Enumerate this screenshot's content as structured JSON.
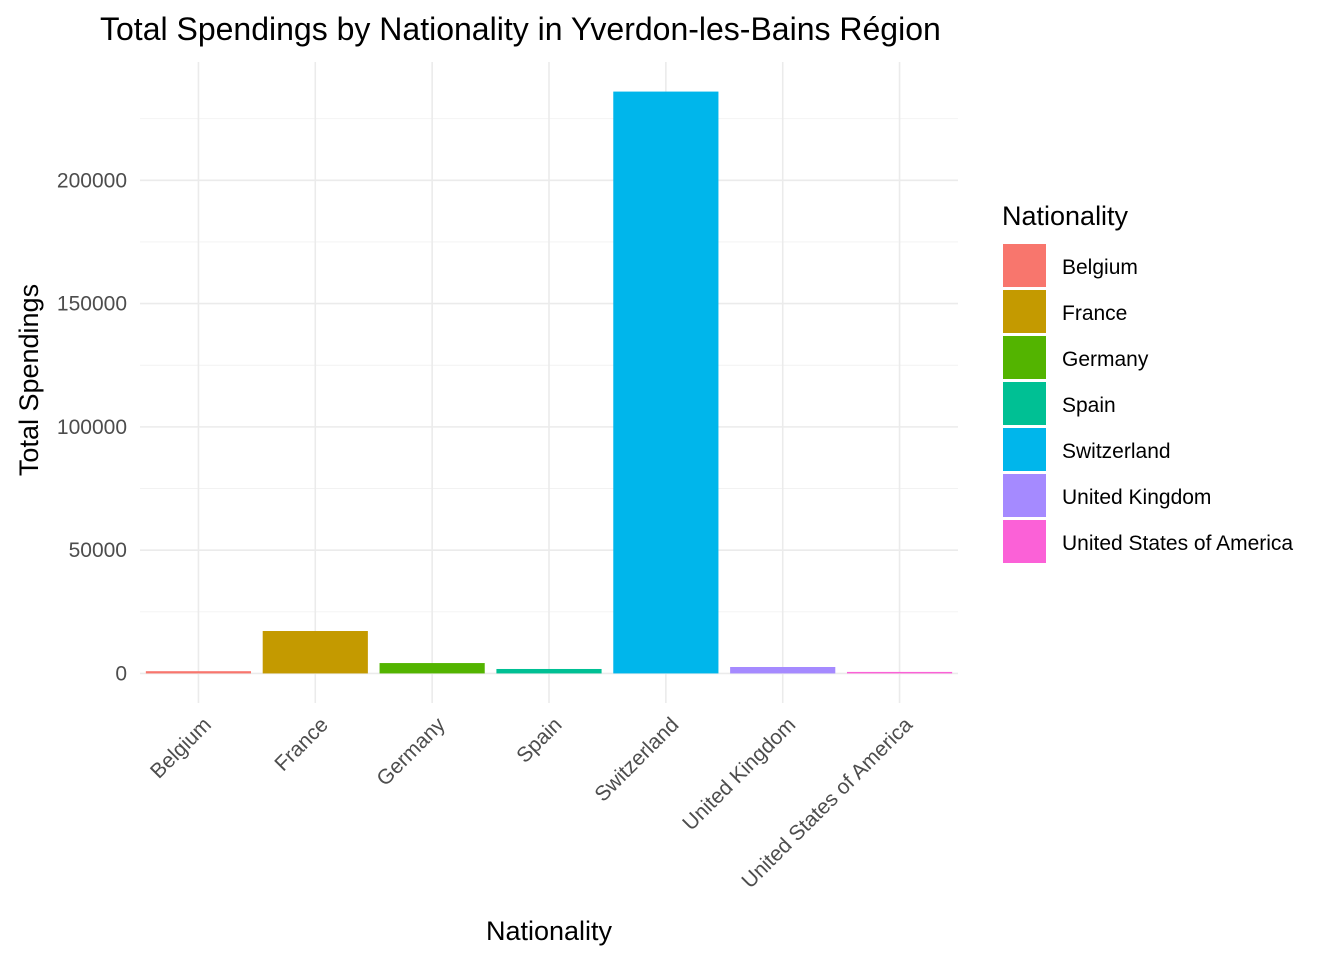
{
  "chart_data": {
    "type": "bar",
    "title": "Total Spendings by Nationality in Yverdon-les-Bains Région",
    "xlabel": "Nationality",
    "ylabel": "Total Spendings",
    "categories": [
      "Belgium",
      "France",
      "Germany",
      "Spain",
      "Switzerland",
      "United Kingdom",
      "United States of America"
    ],
    "values": [
      900,
      17200,
      4200,
      1800,
      236000,
      2600,
      600
    ],
    "colors": [
      "#F8766D",
      "#C49A00",
      "#53B400",
      "#00C094",
      "#00B6EB",
      "#A58AFF",
      "#FB61D7"
    ],
    "yticks": [
      0,
      50000,
      100000,
      150000,
      200000
    ],
    "ylim": [
      -12000,
      248000
    ],
    "grid": true,
    "legend": {
      "title": "Nationality",
      "position": "right",
      "items": [
        "Belgium",
        "France",
        "Germany",
        "Spain",
        "Switzerland",
        "United Kingdom",
        "United States of America"
      ]
    }
  }
}
